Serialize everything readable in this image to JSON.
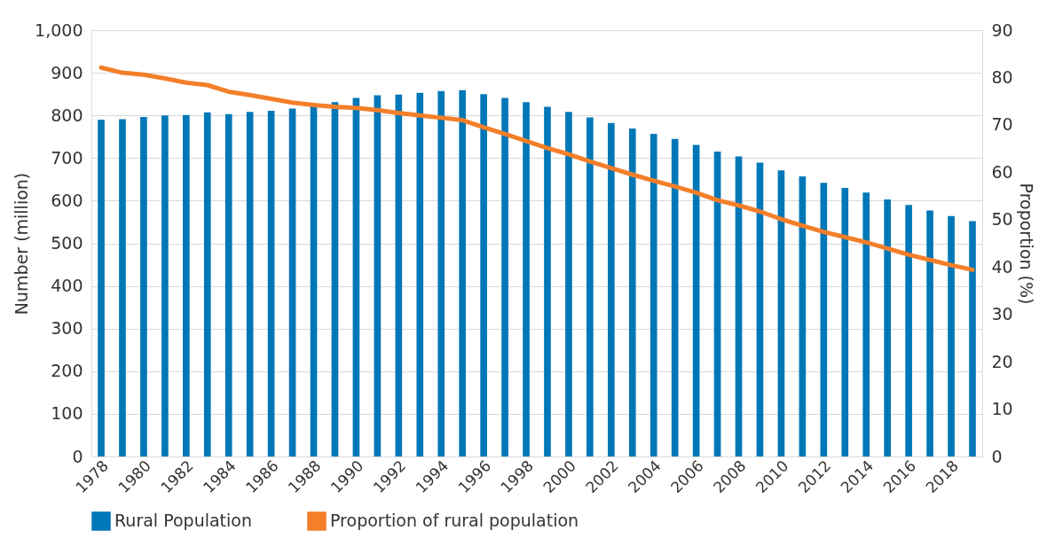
{
  "chart_data": {
    "type": "bar",
    "categories": [
      "1978",
      null,
      "1980",
      null,
      "1982",
      null,
      "1984",
      null,
      "1986",
      null,
      "1988",
      null,
      "1990",
      null,
      "1992",
      null,
      "1994",
      null,
      "1996",
      null,
      "1998",
      null,
      "2000",
      null,
      "2002",
      null,
      "2004",
      null,
      "2006",
      null,
      "2008",
      null,
      "2010",
      null,
      "2012",
      null,
      "2014",
      null,
      "2016",
      null,
      "2018",
      null
    ],
    "series": [
      {
        "name": "Rural Population",
        "color": "#0077b6",
        "values": [
          790,
          791,
          796,
          800,
          801,
          807,
          803,
          808,
          811,
          816,
          823,
          831,
          841,
          847,
          849,
          853,
          857,
          859,
          850,
          841,
          831,
          820,
          808,
          795,
          782,
          769,
          757,
          745,
          731,
          715,
          704,
          689,
          671,
          657,
          642,
          630,
          619,
          603,
          590,
          577,
          564,
          552
        ]
      },
      {
        "name": "Proportion of rural population",
        "color": "#f47f2a",
        "type": "line",
        "axis": "y2",
        "values": [
          82.1,
          81.0,
          80.6,
          79.8,
          78.9,
          78.4,
          77.0,
          76.3,
          75.5,
          74.7,
          74.2,
          73.8,
          73.6,
          73.1,
          72.5,
          72.0,
          71.5,
          71.0,
          69.5,
          68.1,
          66.6,
          65.1,
          63.8,
          62.3,
          60.9,
          59.5,
          58.2,
          57.0,
          55.7,
          54.1,
          53.0,
          51.7,
          50.1,
          48.7,
          47.4,
          46.3,
          45.2,
          43.9,
          42.6,
          41.5,
          40.4,
          39.4
        ]
      }
    ],
    "ylabel": "Number (million)",
    "y2label": "Proportion (%)",
    "ylim": [
      0,
      1000
    ],
    "yticks": [
      0,
      100,
      200,
      300,
      400,
      500,
      600,
      700,
      800,
      900,
      {
        "value": 1000,
        "label": "1,000"
      }
    ],
    "y2lim": [
      0,
      90
    ],
    "y2ticks": [
      0,
      10,
      20,
      30,
      40,
      50,
      60,
      70,
      80,
      90
    ],
    "grid": "y",
    "legend": "bottom",
    "marker": "none",
    "line_style": "solid"
  }
}
